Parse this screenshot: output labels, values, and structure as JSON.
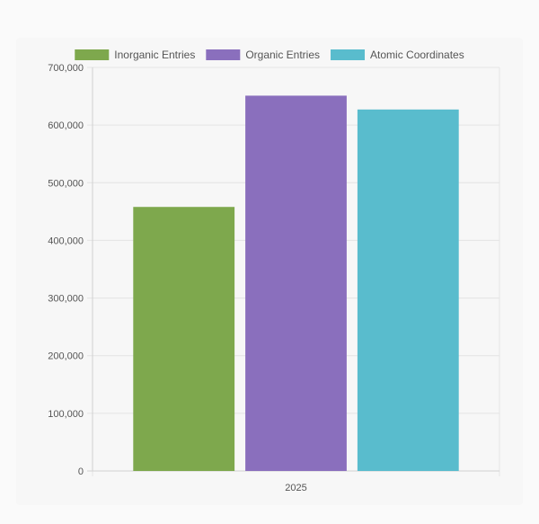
{
  "chart_data": {
    "type": "bar",
    "categories": [
      "2025"
    ],
    "series": [
      {
        "name": "Inorganic Entries",
        "values": [
          458000
        ],
        "color": "#7ea84d"
      },
      {
        "name": "Organic Entries",
        "values": [
          651000
        ],
        "color": "#8a6fbd"
      },
      {
        "name": "Atomic Coordinates",
        "values": [
          627000
        ],
        "color": "#59bccd"
      }
    ],
    "ylim": [
      0,
      700000
    ],
    "yticks": [
      0,
      100000,
      200000,
      300000,
      400000,
      500000,
      600000,
      700000
    ],
    "ytick_labels": [
      "0",
      "100,000",
      "200,000",
      "300,000",
      "400,000",
      "500,000",
      "600,000",
      "700,000"
    ],
    "legend_position": "top",
    "grid": true
  }
}
